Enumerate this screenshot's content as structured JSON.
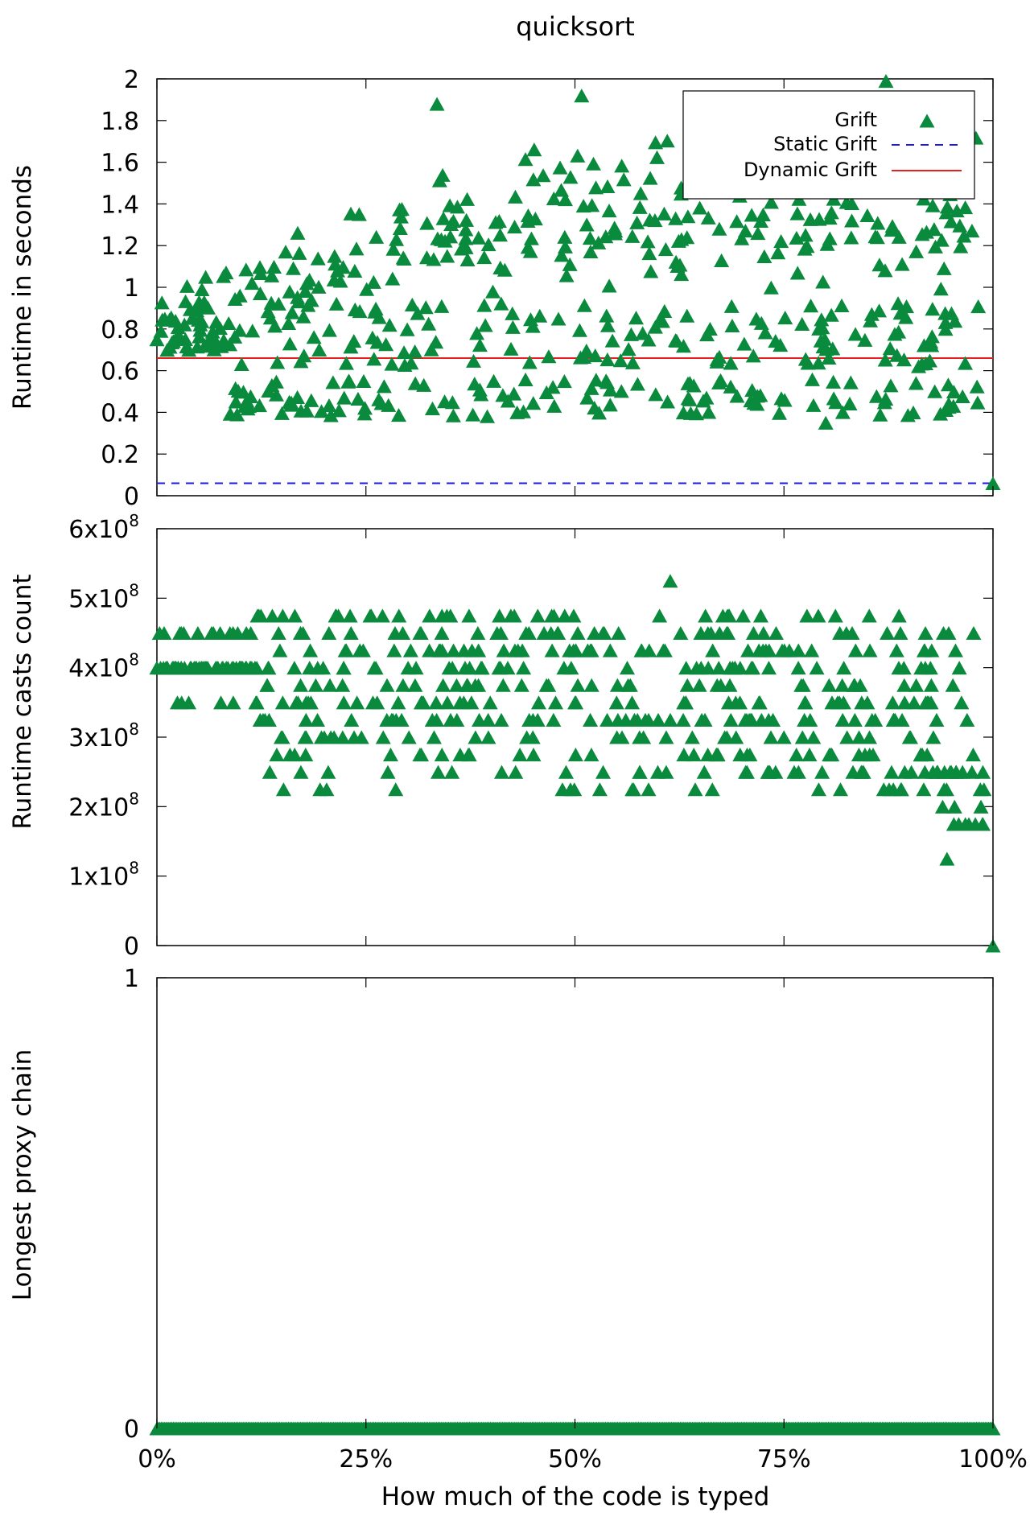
{
  "figure_title": "quicksort",
  "xlabel": "How much of the code is typed",
  "x_tick_labels": [
    "0%",
    "25%",
    "50%",
    "75%",
    "100%"
  ],
  "colors": {
    "points": "#0a8a3c",
    "static_line": "#1a1ae6",
    "dynamic_line": "#e62020",
    "axes": "#000000"
  },
  "legend": {
    "grift": "Grift",
    "static": "Static Grift",
    "dynamic": "Dynamic Grift",
    "placement": "top-right"
  },
  "panels": {
    "runtime": {
      "ylabel": "Runtime in seconds",
      "y_tick_labels": [
        "0",
        "0.2",
        "0.4",
        "0.6",
        "0.8",
        "1",
        "1.2",
        "1.4",
        "1.6",
        "1.8",
        "2"
      ]
    },
    "casts": {
      "ylabel": "Runtime casts count",
      "y_tick_mantissas": [
        "0",
        "1x10",
        "2x10",
        "3x10",
        "4x10",
        "5x10",
        "6x10"
      ],
      "y_tick_exponent": "8"
    },
    "proxy": {
      "ylabel": "Longest proxy chain",
      "y_tick_labels": [
        "0",
        "1"
      ]
    }
  },
  "chart_data": [
    {
      "type": "scatter",
      "title": "quicksort",
      "xlabel": "",
      "ylabel": "Runtime in seconds",
      "xlim": [
        0,
        1
      ],
      "ylim": [
        0,
        2
      ],
      "x_format": "percent",
      "series": [
        {
          "name": "Grift",
          "style": "points",
          "generator": "runtime",
          "n": 560,
          "y_range": [
            0.06,
            1.99
          ]
        },
        {
          "name": "Static Grift",
          "style": "dashed-line",
          "y": 0.06
        },
        {
          "name": "Dynamic Grift",
          "style": "solid-line",
          "y": 0.66
        }
      ],
      "highlighted_points": [
        [
          0.0,
          0.75
        ],
        [
          0.335,
          1.88
        ],
        [
          0.508,
          1.92
        ],
        [
          0.872,
          1.99
        ],
        [
          0.8,
          0.35
        ],
        [
          1.0,
          0.06
        ]
      ]
    },
    {
      "type": "scatter",
      "xlabel": "",
      "ylabel": "Runtime casts count",
      "xlim": [
        0,
        1
      ],
      "ylim": [
        0,
        600000000
      ],
      "x_format": "percent",
      "series": [
        {
          "name": "Grift",
          "style": "points",
          "generator": "casts",
          "n": 560,
          "y_range": [
            0,
            525000000
          ]
        }
      ],
      "highlighted_points": [
        [
          0.0,
          400000000
        ],
        [
          0.614,
          525000000
        ],
        [
          0.945,
          125000000
        ],
        [
          1.0,
          0
        ]
      ]
    },
    {
      "type": "scatter",
      "xlabel": "How much of the code is typed",
      "ylabel": "Longest proxy chain",
      "xlim": [
        0,
        1
      ],
      "ylim": [
        0,
        1
      ],
      "x_format": "percent",
      "series": [
        {
          "name": "Grift",
          "style": "points",
          "generator": "constant",
          "n": 560,
          "y": 0
        }
      ]
    }
  ]
}
